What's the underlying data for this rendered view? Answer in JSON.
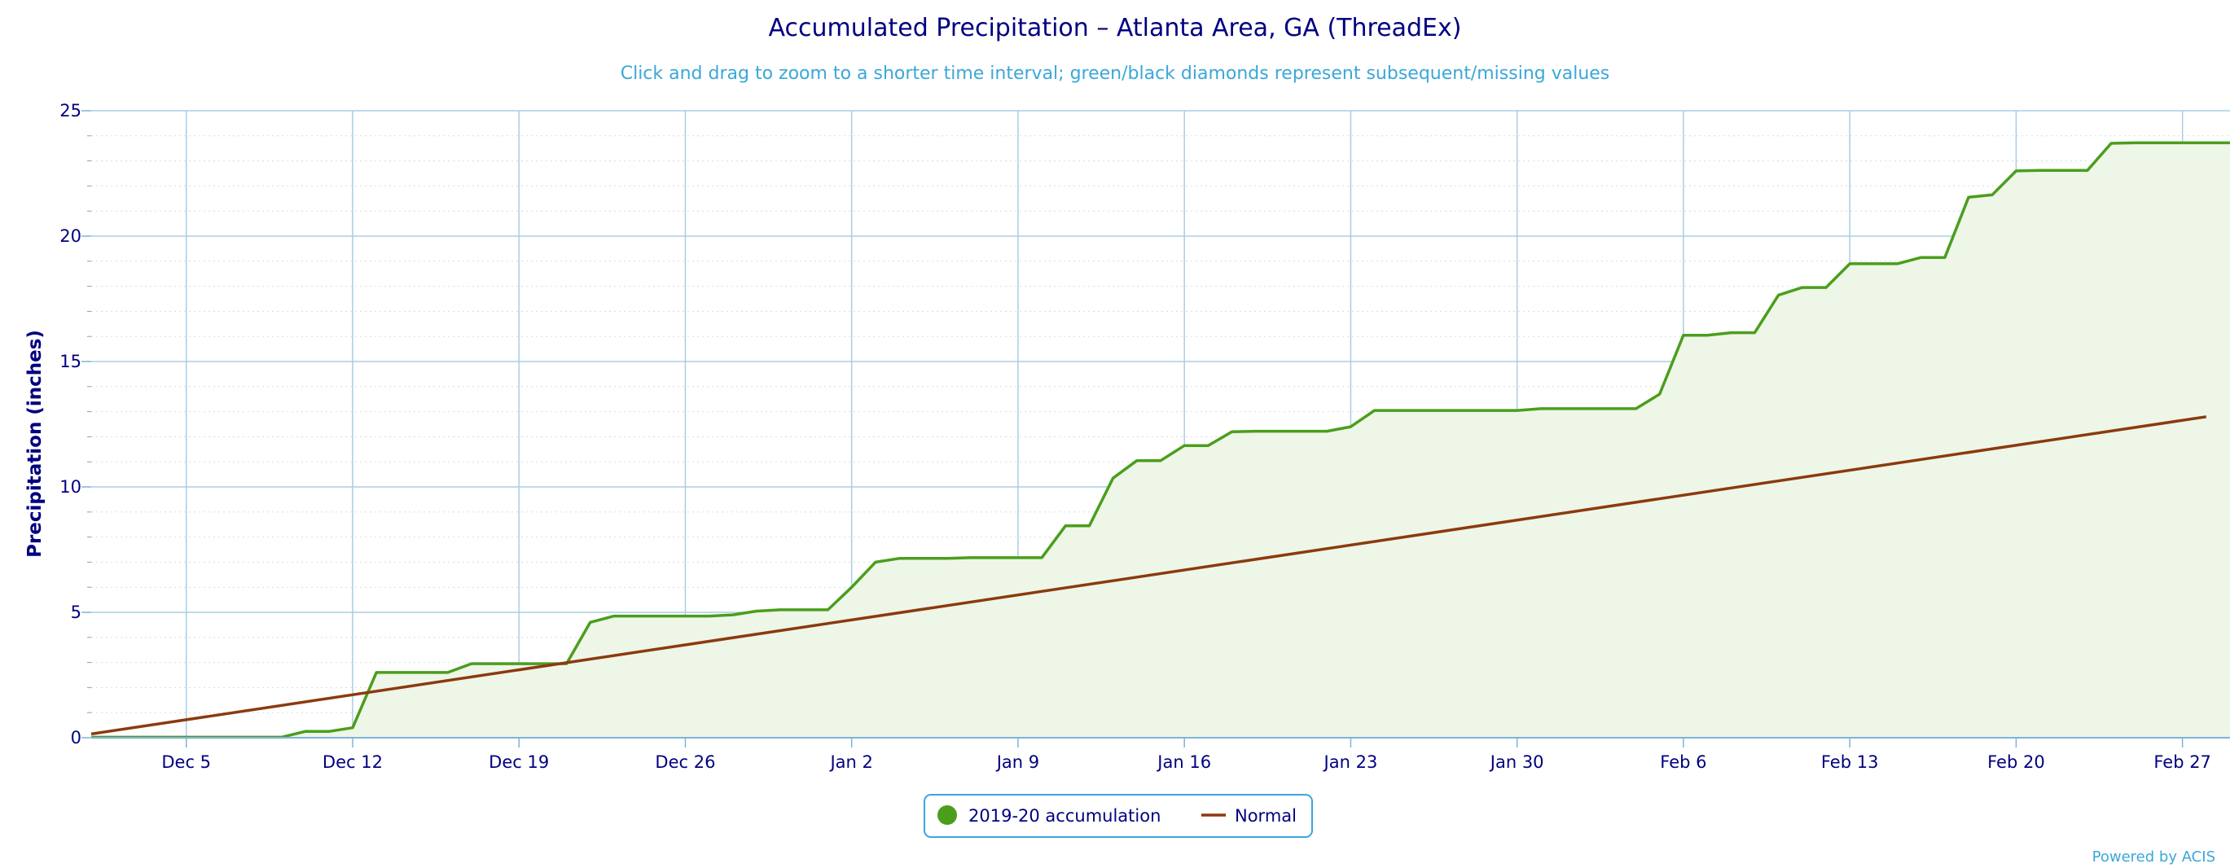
{
  "chart_data": {
    "type": "line",
    "title": "Accumulated Precipitation – Atlanta Area, GA (ThreadEx)",
    "subtitle": "Click and drag to zoom to a shorter time interval; green/black diamonds represent subsequent/missing values",
    "ylabel": "Precipitation (inches)",
    "xlabel": "",
    "ylim": [
      0,
      25
    ],
    "yticks": [
      0,
      5,
      10,
      15,
      20,
      25
    ],
    "xlim": [
      "2019-12-01",
      "2020-02-29"
    ],
    "xticks": [
      {
        "date": "2019-12-05",
        "label": "Dec 5"
      },
      {
        "date": "2019-12-12",
        "label": "Dec 12"
      },
      {
        "date": "2019-12-19",
        "label": "Dec 19"
      },
      {
        "date": "2019-12-26",
        "label": "Dec 26"
      },
      {
        "date": "2020-01-02",
        "label": "Jan 2"
      },
      {
        "date": "2020-01-09",
        "label": "Jan 9"
      },
      {
        "date": "2020-01-16",
        "label": "Jan 16"
      },
      {
        "date": "2020-01-23",
        "label": "Jan 23"
      },
      {
        "date": "2020-01-30",
        "label": "Jan 30"
      },
      {
        "date": "2020-02-06",
        "label": "Feb 6"
      },
      {
        "date": "2020-02-13",
        "label": "Feb 13"
      },
      {
        "date": "2020-02-20",
        "label": "Feb 20"
      },
      {
        "date": "2020-02-27",
        "label": "Feb 27"
      }
    ],
    "grid": true,
    "legend_position": "bottom-center",
    "series": [
      {
        "name": "2019-20 accumulation",
        "color": "#4a9e1c",
        "fill": "#eef6e8",
        "area": true,
        "x": [
          "2019-12-01",
          "2019-12-02",
          "2019-12-03",
          "2019-12-04",
          "2019-12-05",
          "2019-12-06",
          "2019-12-07",
          "2019-12-08",
          "2019-12-09",
          "2019-12-10",
          "2019-12-11",
          "2019-12-12",
          "2019-12-13",
          "2019-12-14",
          "2019-12-15",
          "2019-12-16",
          "2019-12-17",
          "2019-12-18",
          "2019-12-19",
          "2019-12-20",
          "2019-12-21",
          "2019-12-22",
          "2019-12-23",
          "2019-12-24",
          "2019-12-25",
          "2019-12-26",
          "2019-12-27",
          "2019-12-28",
          "2019-12-29",
          "2019-12-30",
          "2019-12-31",
          "2020-01-01",
          "2020-01-02",
          "2020-01-03",
          "2020-01-04",
          "2020-01-05",
          "2020-01-06",
          "2020-01-07",
          "2020-01-08",
          "2020-01-09",
          "2020-01-10",
          "2020-01-11",
          "2020-01-12",
          "2020-01-13",
          "2020-01-14",
          "2020-01-15",
          "2020-01-16",
          "2020-01-17",
          "2020-01-18",
          "2020-01-19",
          "2020-01-20",
          "2020-01-21",
          "2020-01-22",
          "2020-01-23",
          "2020-01-24",
          "2020-01-25",
          "2020-01-26",
          "2020-01-27",
          "2020-01-28",
          "2020-01-29",
          "2020-01-30",
          "2020-01-31",
          "2020-02-01",
          "2020-02-02",
          "2020-02-03",
          "2020-02-04",
          "2020-02-05",
          "2020-02-06",
          "2020-02-07",
          "2020-02-08",
          "2020-02-09",
          "2020-02-10",
          "2020-02-11",
          "2020-02-12",
          "2020-02-13",
          "2020-02-14",
          "2020-02-15",
          "2020-02-16",
          "2020-02-17",
          "2020-02-18",
          "2020-02-19",
          "2020-02-20",
          "2020-02-21",
          "2020-02-22",
          "2020-02-23",
          "2020-02-24",
          "2020-02-25",
          "2020-02-26",
          "2020-02-27",
          "2020-02-28",
          "2020-02-29"
        ],
        "values": [
          0.02,
          0.02,
          0.02,
          0.02,
          0.02,
          0.02,
          0.02,
          0.02,
          0.02,
          0.25,
          0.25,
          0.4,
          2.6,
          2.6,
          2.6,
          2.6,
          2.95,
          2.95,
          2.95,
          2.95,
          2.95,
          4.6,
          4.85,
          4.85,
          4.85,
          4.85,
          4.85,
          4.9,
          5.05,
          5.1,
          5.1,
          5.1,
          6.0,
          7.0,
          7.15,
          7.15,
          7.15,
          7.18,
          7.18,
          7.18,
          7.18,
          8.45,
          8.45,
          10.35,
          11.05,
          11.05,
          11.65,
          11.65,
          12.2,
          12.22,
          12.22,
          12.22,
          12.22,
          12.4,
          13.05,
          13.05,
          13.05,
          13.05,
          13.05,
          13.05,
          13.05,
          13.12,
          13.12,
          13.12,
          13.12,
          13.12,
          13.7,
          16.05,
          16.05,
          16.15,
          16.15,
          17.65,
          17.95,
          17.95,
          18.9,
          18.9,
          18.9,
          19.15,
          19.15,
          21.55,
          21.65,
          22.6,
          22.62,
          22.62,
          22.62,
          23.7,
          23.72,
          23.72,
          23.72,
          23.72,
          23.72
        ]
      },
      {
        "name": "Normal",
        "color": "#8b3a0e",
        "area": false,
        "x": [
          "2019-12-01",
          "2020-02-28"
        ],
        "values": [
          0.15,
          12.8
        ]
      }
    ]
  },
  "credits": "Powered by ACIS"
}
